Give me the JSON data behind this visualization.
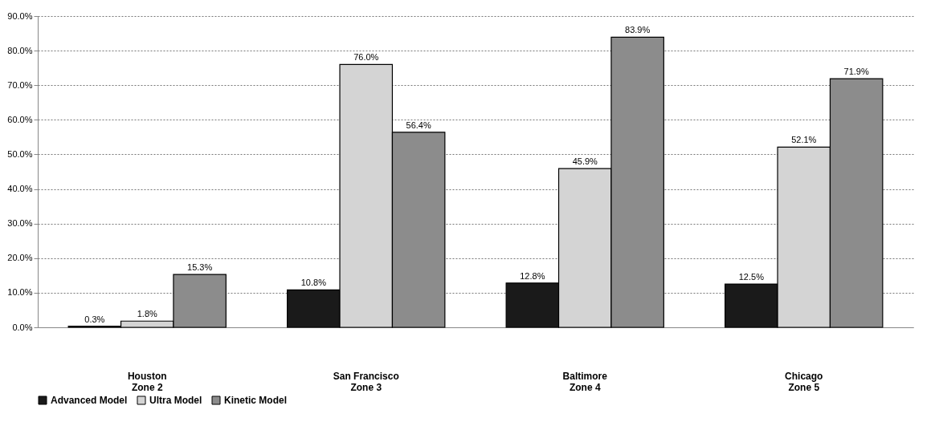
{
  "chart_data": {
    "type": "bar",
    "categories": [
      "Houston\nZone 2",
      "San Francisco\nZone 3",
      "Baltimore\nZone 4",
      "Chicago\nZone 5"
    ],
    "series": [
      {
        "name": "Advanced Model",
        "color": "#1a1a1a",
        "values": [
          0.3,
          10.8,
          12.8,
          12.5
        ],
        "value_labels": [
          "0.3%",
          "10.8%",
          "12.8%",
          "12.5%"
        ]
      },
      {
        "name": "Ultra Model",
        "color": "#d4d4d4",
        "values": [
          1.8,
          76.0,
          45.9,
          52.1
        ],
        "value_labels": [
          "1.8%",
          "76.0%",
          "45.9%",
          "52.1%"
        ]
      },
      {
        "name": "Kinetic Model",
        "color": "#8c8c8c",
        "values": [
          15.3,
          56.4,
          83.9,
          71.9
        ],
        "value_labels": [
          "15.3%",
          "56.4%",
          "83.9%",
          "71.9%"
        ]
      }
    ],
    "ylim": [
      0,
      90
    ],
    "yticks": [
      {
        "value": 0,
        "label": "0.0%"
      },
      {
        "value": 10,
        "label": "10.0%"
      },
      {
        "value": 20,
        "label": "20.0%"
      },
      {
        "value": 30,
        "label": "30.0%"
      },
      {
        "value": 40,
        "label": "40.0%"
      },
      {
        "value": 50,
        "label": "50.0%"
      },
      {
        "value": 60,
        "label": "60.0%"
      },
      {
        "value": 70,
        "label": "70.0%"
      },
      {
        "value": 80,
        "label": "80.0%"
      },
      {
        "value": 90,
        "label": "90.0%"
      }
    ],
    "grid": "y",
    "legend": "bottom"
  }
}
